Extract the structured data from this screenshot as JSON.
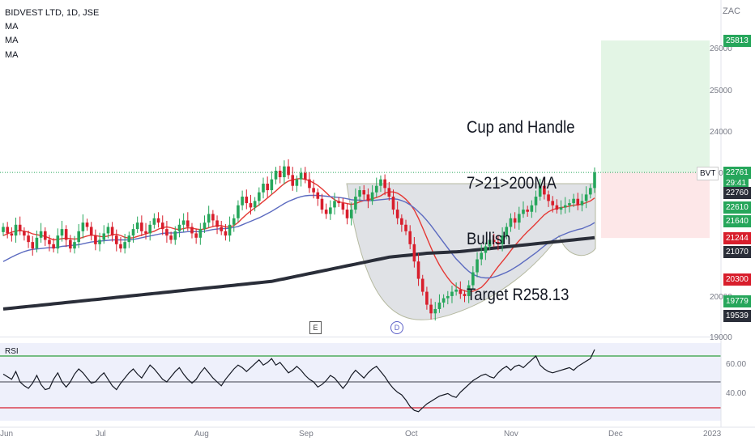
{
  "header": {
    "title": "BIDVEST LTD, 1D, JSE",
    "indicators": [
      "MA",
      "MA",
      "MA"
    ]
  },
  "currency": "ZAC",
  "annotation": [
    "Cup and Handle",
    "7>21>200MA",
    "Bullish",
    "Target R258.13"
  ],
  "price_axis": {
    "ticks": [
      "26000",
      "25000",
      "24000",
      "23000",
      "20000",
      "19000"
    ]
  },
  "rsi_axis": {
    "label": "RSI",
    "ticks": [
      "60.00",
      "40.00"
    ]
  },
  "time_axis": {
    "labels": [
      "Jun",
      "Jul",
      "Aug",
      "Sep",
      "Oct",
      "Nov",
      "Dec",
      "2023"
    ]
  },
  "events": [
    {
      "label": "E"
    },
    {
      "label": "D"
    }
  ],
  "price_labels": [
    {
      "text": "25813",
      "color": "green",
      "price": 25813
    },
    {
      "text": "BVT",
      "color": "badge",
      "price": 22761
    },
    {
      "text": "22761",
      "color": "green",
      "price": 22761
    },
    {
      "text": "29:41",
      "color": "green",
      "price": 22520
    },
    {
      "text": "22760",
      "color": "dark",
      "price": 22290
    },
    {
      "text": "22610",
      "color": "green",
      "price": 21960
    },
    {
      "text": "21640",
      "color": "green",
      "price": 21640
    },
    {
      "text": "21244",
      "color": "red",
      "price": 21244
    },
    {
      "text": "21070",
      "color": "dark",
      "price": 20920
    },
    {
      "text": "20300",
      "color": "red",
      "price": 20300
    },
    {
      "text": "19779",
      "color": "green",
      "price": 19779
    },
    {
      "text": "19539",
      "color": "dark",
      "price": 19450
    }
  ],
  "chart_data": {
    "type": "candlestick",
    "title": "BIDVEST LTD, 1D, JSE",
    "ylim": [
      19000,
      26600
    ],
    "rsi_ylim": [
      20,
      80
    ],
    "rsi_levels": [
      70,
      50,
      30
    ],
    "position": {
      "entry": 22761,
      "target": 25813,
      "stop": 21244
    },
    "closes": [
      21500,
      21350,
      21300,
      21550,
      21400,
      21300,
      21150,
      21000,
      21250,
      21400,
      21200,
      21100,
      21000,
      21300,
      21450,
      21200,
      21000,
      21150,
      21400,
      21600,
      21500,
      21300,
      21100,
      21200,
      21350,
      21500,
      21300,
      21100,
      21000,
      21150,
      21300,
      21450,
      21600,
      21400,
      21350,
      21550,
      21700,
      21600,
      21450,
      21300,
      21200,
      21400,
      21550,
      21650,
      21500,
      21350,
      21250,
      21450,
      21600,
      21800,
      21650,
      21500,
      21400,
      21300,
      21550,
      21700,
      22000,
      22200,
      22050,
      21950,
      22100,
      22300,
      22500,
      22350,
      22600,
      22800,
      22650,
      22900,
      22700,
      22450,
      22600,
      22750,
      22600,
      22400,
      22300,
      22150,
      21900,
      21800,
      21950,
      22100,
      22050,
      21900,
      21700,
      21900,
      22200,
      22350,
      22250,
      22100,
      22300,
      22450,
      22600,
      22400,
      22200,
      21900,
      21700,
      21550,
      21400,
      21100,
      20700,
      20300,
      20000,
      19700,
      19500,
      19600,
      19750,
      19850,
      19900,
      20000,
      20050,
      19950,
      19900,
      20150,
      20450,
      20750,
      20900,
      21050,
      21200,
      21150,
      21100,
      21300,
      21500,
      21700,
      21600,
      21800,
      21900,
      21850,
      22000,
      22200,
      22450,
      22250,
      22100,
      22000,
      21900,
      21950,
      22000,
      22050,
      22150,
      22000,
      22100,
      22250,
      22400,
      22761
    ],
    "ma_series": [
      {
        "color": "#e53935",
        "values": [
          21300,
          21340,
          21380,
          21400,
          21420,
          21400,
          21380,
          21340,
          21320,
          21300,
          21280,
          21240,
          21200,
          21210,
          21230,
          21240,
          21230,
          21220,
          21230,
          21260,
          21290,
          21310,
          21300,
          21280,
          21270,
          21290,
          21320,
          21330,
          21300,
          21260,
          21240,
          21250,
          21280,
          21310,
          21340,
          21370,
          21400,
          21450,
          21480,
          21500,
          21480,
          21450,
          21440,
          21460,
          21480,
          21470,
          21450,
          21440,
          21450,
          21480,
          21510,
          21530,
          21530,
          21500,
          21500,
          21530,
          21600,
          21700,
          21790,
          21870,
          21940,
          22010,
          22090,
          22170,
          22250,
          22330,
          22420,
          22500,
          22560,
          22590,
          22610,
          22620,
          22600,
          22570,
          22520,
          22460,
          22380,
          22290,
          22200,
          22130,
          22080,
          22060,
          22040,
          22020,
          22040,
          22080,
          22110,
          22130,
          22150,
          22180,
          22220,
          22280,
          22310,
          22310,
          22280,
          22220,
          22140,
          22030,
          21890,
          21700,
          21480,
          21250,
          21020,
          20800,
          20620,
          20460,
          20320,
          20200,
          20120,
          20060,
          20020,
          20000,
          20010,
          20050,
          20100,
          20200,
          20320,
          20450,
          20580,
          20700,
          20820,
          20950,
          21070,
          21180,
          21290,
          21390,
          21480,
          21580,
          21680,
          21780,
          21850,
          21900,
          21930,
          21950,
          21960,
          21980,
          22000,
          22010,
          22030,
          22060,
          22100,
          22170
        ]
      },
      {
        "color": "#5c6bc0",
        "values": [
          20700,
          20750,
          20800,
          20850,
          20890,
          20930,
          20960,
          20980,
          20990,
          21000,
          21010,
          21020,
          21020,
          21030,
          21050,
          21060,
          21070,
          21080,
          21090,
          21110,
          21130,
          21150,
          21160,
          21170,
          21180,
          21190,
          21200,
          21200,
          21200,
          21200,
          21200,
          21210,
          21230,
          21250,
          21270,
          21290,
          21310,
          21330,
          21350,
          21360,
          21360,
          21360,
          21370,
          21380,
          21390,
          21390,
          21390,
          21390,
          21400,
          21420,
          21440,
          21450,
          21460,
          21460,
          21470,
          21490,
          21510,
          21550,
          21590,
          21630,
          21670,
          21710,
          21760,
          21810,
          21860,
          21920,
          21980,
          22040,
          22090,
          22130,
          22170,
          22200,
          22220,
          22230,
          22230,
          22230,
          22220,
          22210,
          22200,
          22190,
          22180,
          22170,
          22150,
          22130,
          22120,
          22120,
          22110,
          22110,
          22110,
          22120,
          22130,
          22140,
          22150,
          22150,
          22140,
          22110,
          22070,
          22010,
          21940,
          21850,
          21760,
          21650,
          21530,
          21400,
          21270,
          21140,
          21010,
          20880,
          20760,
          20660,
          20560,
          20470,
          20400,
          20360,
          20330,
          20320,
          20320,
          20340,
          20370,
          20410,
          20450,
          20500,
          20560,
          20620,
          20690,
          20760,
          20830,
          20900,
          20980,
          21060,
          21130,
          21190,
          21250,
          21300,
          21340,
          21380,
          21410,
          21440,
          21460,
          21500,
          21540,
          21600
        ]
      },
      {
        "color": "#2a2e39",
        "values": [
          19600,
          19610,
          19620,
          19630,
          19640,
          19650,
          19660,
          19670,
          19680,
          19690,
          19700,
          19710,
          19720,
          19730,
          19740,
          19750,
          19760,
          19770,
          19780,
          19790,
          19800,
          19810,
          19820,
          19830,
          19840,
          19850,
          19860,
          19870,
          19880,
          19890,
          19900,
          19910,
          19920,
          19930,
          19940,
          19950,
          19960,
          19970,
          19980,
          19990,
          20000,
          20010,
          20020,
          20030,
          20040,
          20050,
          20060,
          20070,
          20080,
          20090,
          20100,
          20110,
          20120,
          20130,
          20140,
          20150,
          20160,
          20170,
          20180,
          20190,
          20200,
          20210,
          20220,
          20230,
          20240,
          20260,
          20280,
          20300,
          20320,
          20340,
          20360,
          20380,
          20400,
          20420,
          20440,
          20460,
          20480,
          20500,
          20520,
          20540,
          20560,
          20580,
          20600,
          20620,
          20640,
          20660,
          20680,
          20700,
          20720,
          20740,
          20760,
          20780,
          20800,
          20810,
          20820,
          20830,
          20840,
          20850,
          20860,
          20870,
          20880,
          20890,
          20895,
          20900,
          20905,
          20910,
          20915,
          20920,
          20925,
          20930,
          20940,
          20950,
          20960,
          20970,
          20980,
          20990,
          21000,
          21010,
          21020,
          21030,
          21040,
          21050,
          21060,
          21070,
          21080,
          21090,
          21100,
          21110,
          21120,
          21130,
          21140,
          21150,
          21160,
          21170,
          21180,
          21190,
          21200,
          21210,
          21220,
          21230,
          21240,
          21250
        ]
      }
    ],
    "rsi": [
      56,
      54,
      52,
      58,
      50,
      47,
      45,
      49,
      55,
      48,
      44,
      45,
      52,
      57,
      50,
      46,
      50,
      56,
      60,
      57,
      53,
      49,
      50,
      54,
      57,
      52,
      47,
      44,
      49,
      53,
      57,
      60,
      56,
      53,
      58,
      63,
      60,
      56,
      52,
      50,
      54,
      58,
      61,
      56,
      52,
      49,
      52,
      57,
      61,
      57,
      53,
      50,
      47,
      52,
      56,
      60,
      63,
      61,
      58,
      61,
      64,
      67,
      63,
      65,
      68,
      63,
      65,
      61,
      57,
      59,
      62,
      59,
      55,
      52,
      50,
      46,
      48,
      51,
      55,
      53,
      49,
      45,
      49,
      55,
      59,
      56,
      53,
      57,
      60,
      62,
      58,
      54,
      49,
      45,
      42,
      40,
      36,
      31,
      28,
      27,
      30,
      33,
      35,
      37,
      39,
      40,
      41,
      39,
      38,
      42,
      45,
      48,
      51,
      53,
      55,
      56,
      54,
      53,
      57,
      60,
      62,
      59,
      62,
      63,
      61,
      64,
      67,
      70,
      63,
      60,
      58,
      57,
      58,
      59,
      60,
      61,
      59,
      62,
      64,
      66,
      68,
      75
    ]
  }
}
